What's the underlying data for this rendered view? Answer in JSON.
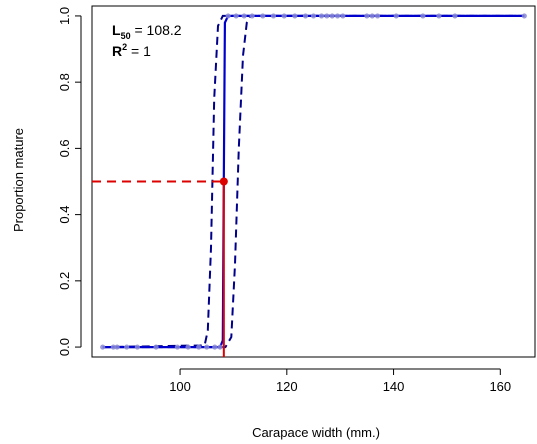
{
  "chart_data": {
    "type": "line",
    "title": "",
    "xlabel": "Carapace width (mm.)",
    "ylabel": "Proportion mature",
    "xlim": [
      83.5,
      166.5
    ],
    "ylim": [
      -0.03,
      1.03
    ],
    "xticks": [
      100,
      120,
      140,
      160
    ],
    "yticks": [
      0.0,
      0.2,
      0.4,
      0.6,
      0.8,
      1.0
    ],
    "x_tick_labels": [
      "100",
      "120",
      "140",
      "160"
    ],
    "y_tick_labels": [
      "0.0",
      "0.2",
      "0.4",
      "0.6",
      "0.8",
      "1.0"
    ],
    "grid": false,
    "legend": "none",
    "annotation": {
      "l50_prefix": "L",
      "l50_sub": "50",
      "l50_value": " = 108.2",
      "r2_prefix": "R",
      "r2_sup": "2",
      "r2_value": " = 1"
    },
    "l50": 108.2,
    "series": [
      {
        "role": "observations",
        "color": "#8a8ad6",
        "points": [
          [
            85.5,
            0
          ],
          [
            87.5,
            0
          ],
          [
            88.2,
            0
          ],
          [
            90,
            0
          ],
          [
            92,
            0
          ],
          [
            95.5,
            0
          ],
          [
            99.5,
            0
          ],
          [
            101.5,
            0
          ],
          [
            103.5,
            0
          ],
          [
            105,
            0
          ],
          [
            106.5,
            0
          ],
          [
            107.5,
            0
          ],
          [
            109,
            1
          ],
          [
            110.5,
            1
          ],
          [
            112,
            1
          ],
          [
            113.5,
            1
          ],
          [
            115.5,
            1
          ],
          [
            117.5,
            1
          ],
          [
            119.5,
            1
          ],
          [
            121.5,
            1
          ],
          [
            123.5,
            1
          ],
          [
            125,
            1
          ],
          [
            126.5,
            1
          ],
          [
            127.5,
            1
          ],
          [
            128.5,
            1
          ],
          [
            129.5,
            1
          ],
          [
            130.5,
            1
          ],
          [
            135,
            1
          ],
          [
            136,
            1
          ],
          [
            137,
            1
          ],
          [
            140.5,
            1
          ],
          [
            145.5,
            1
          ],
          [
            148.5,
            1
          ],
          [
            151.5,
            1
          ],
          [
            164.5,
            1
          ]
        ]
      },
      {
        "role": "fitted-curve",
        "color": "#0000cd",
        "points": [
          [
            85.5,
            0
          ],
          [
            107.5,
            0
          ],
          [
            108.0,
            0.02
          ],
          [
            108.2,
            0.5
          ],
          [
            108.4,
            0.98
          ],
          [
            109.0,
            1
          ],
          [
            164.5,
            1
          ]
        ]
      },
      {
        "role": "lower-confidence-bound",
        "color": "#00008b",
        "points": [
          [
            85.5,
            0
          ],
          [
            104.6,
            0.005
          ],
          [
            105.2,
            0.05
          ],
          [
            105.8,
            0.3
          ],
          [
            106.4,
            0.75
          ],
          [
            107.1,
            0.97
          ],
          [
            108.0,
            1
          ],
          [
            164.5,
            1
          ]
        ]
      },
      {
        "role": "upper-confidence-bound",
        "color": "#00008b",
        "points": [
          [
            85.5,
            0
          ],
          [
            108.5,
            0
          ],
          [
            109.6,
            0.03
          ],
          [
            110.3,
            0.25
          ],
          [
            111.0,
            0.6
          ],
          [
            111.8,
            0.88
          ],
          [
            112.5,
            0.98
          ],
          [
            113.2,
            1
          ],
          [
            164.5,
            1
          ]
        ]
      }
    ],
    "l50_marker": {
      "color": "#dd0000",
      "point": [
        108.2,
        0.5
      ]
    }
  }
}
